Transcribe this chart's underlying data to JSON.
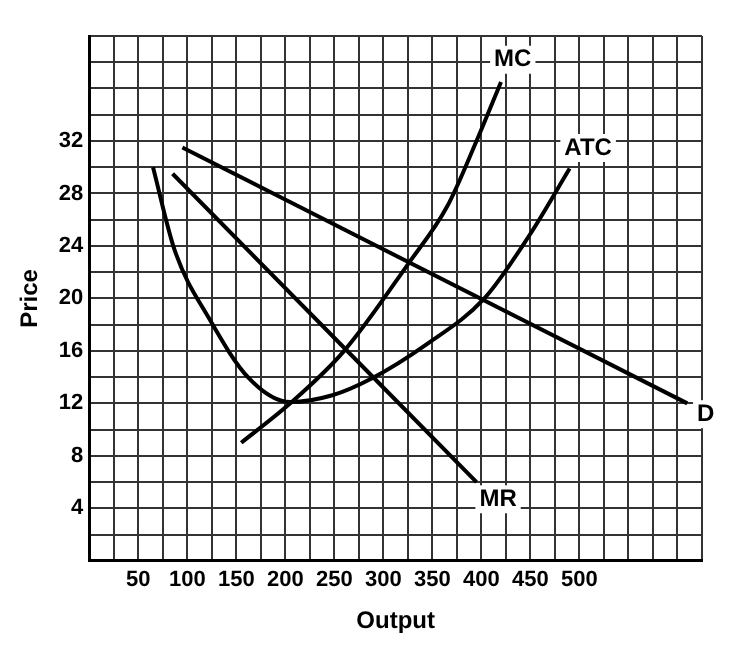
{
  "chart_data": {
    "type": "line",
    "xlabel": "Output",
    "ylabel": "Price",
    "xlim": [
      0,
      625
    ],
    "ylim": [
      0,
      40
    ],
    "xticks": [
      {
        "value": 0,
        "label": null
      },
      {
        "value": 25,
        "label": null
      },
      50,
      {
        "value": 75,
        "label": null
      },
      100,
      {
        "value": 125,
        "label": null
      },
      150,
      {
        "value": 175,
        "label": null
      },
      200,
      {
        "value": 225,
        "label": null
      },
      250,
      {
        "value": 275,
        "label": null
      },
      300,
      {
        "value": 325,
        "label": null
      },
      350,
      {
        "value": 375,
        "label": null
      },
      400,
      {
        "value": 425,
        "label": null
      },
      450,
      {
        "value": 475,
        "label": null
      },
      500,
      {
        "value": 525,
        "label": null
      },
      {
        "value": 550,
        "label": null
      },
      {
        "value": 575,
        "label": null
      },
      {
        "value": 600,
        "label": null
      },
      {
        "value": 625,
        "label": null
      }
    ],
    "yticks": [
      {
        "value": 0,
        "label": null
      },
      {
        "value": 2,
        "label": null
      },
      4,
      {
        "value": 6,
        "label": null
      },
      8,
      {
        "value": 10,
        "label": null
      },
      12,
      {
        "value": 14,
        "label": null
      },
      16,
      {
        "value": 18,
        "label": null
      },
      20,
      {
        "value": 22,
        "label": null
      },
      24,
      {
        "value": 26,
        "label": null
      },
      28,
      {
        "value": 30,
        "label": null
      },
      32,
      {
        "value": 34,
        "label": null
      },
      {
        "value": 36,
        "label": null
      },
      {
        "value": 38,
        "label": null
      },
      {
        "value": 40,
        "label": null
      }
    ],
    "grid": true,
    "legend": false,
    "series": [
      {
        "name": "MC",
        "color": "#000000",
        "x": [
          155,
          205,
          260,
          325,
          365,
          395,
          420
        ],
        "values": [
          9,
          12,
          16,
          22.6,
          27,
          32,
          36.5
        ]
      },
      {
        "name": "ATC",
        "color": "#000000",
        "x": [
          65,
          87,
          122,
          163,
          205,
          247,
          288,
          344,
          403,
          448,
          490
        ],
        "values": [
          30,
          23.7,
          18.5,
          13.9,
          12.1,
          12.6,
          13.9,
          16.5,
          20,
          24.7,
          29.9
        ]
      },
      {
        "name": "D",
        "color": "#000000",
        "x": [
          95,
          610
        ],
        "values": [
          31.5,
          12
        ]
      },
      {
        "name": "MR",
        "color": "#000000",
        "x": [
          85,
          395
        ],
        "values": [
          29.5,
          6
        ]
      }
    ]
  }
}
